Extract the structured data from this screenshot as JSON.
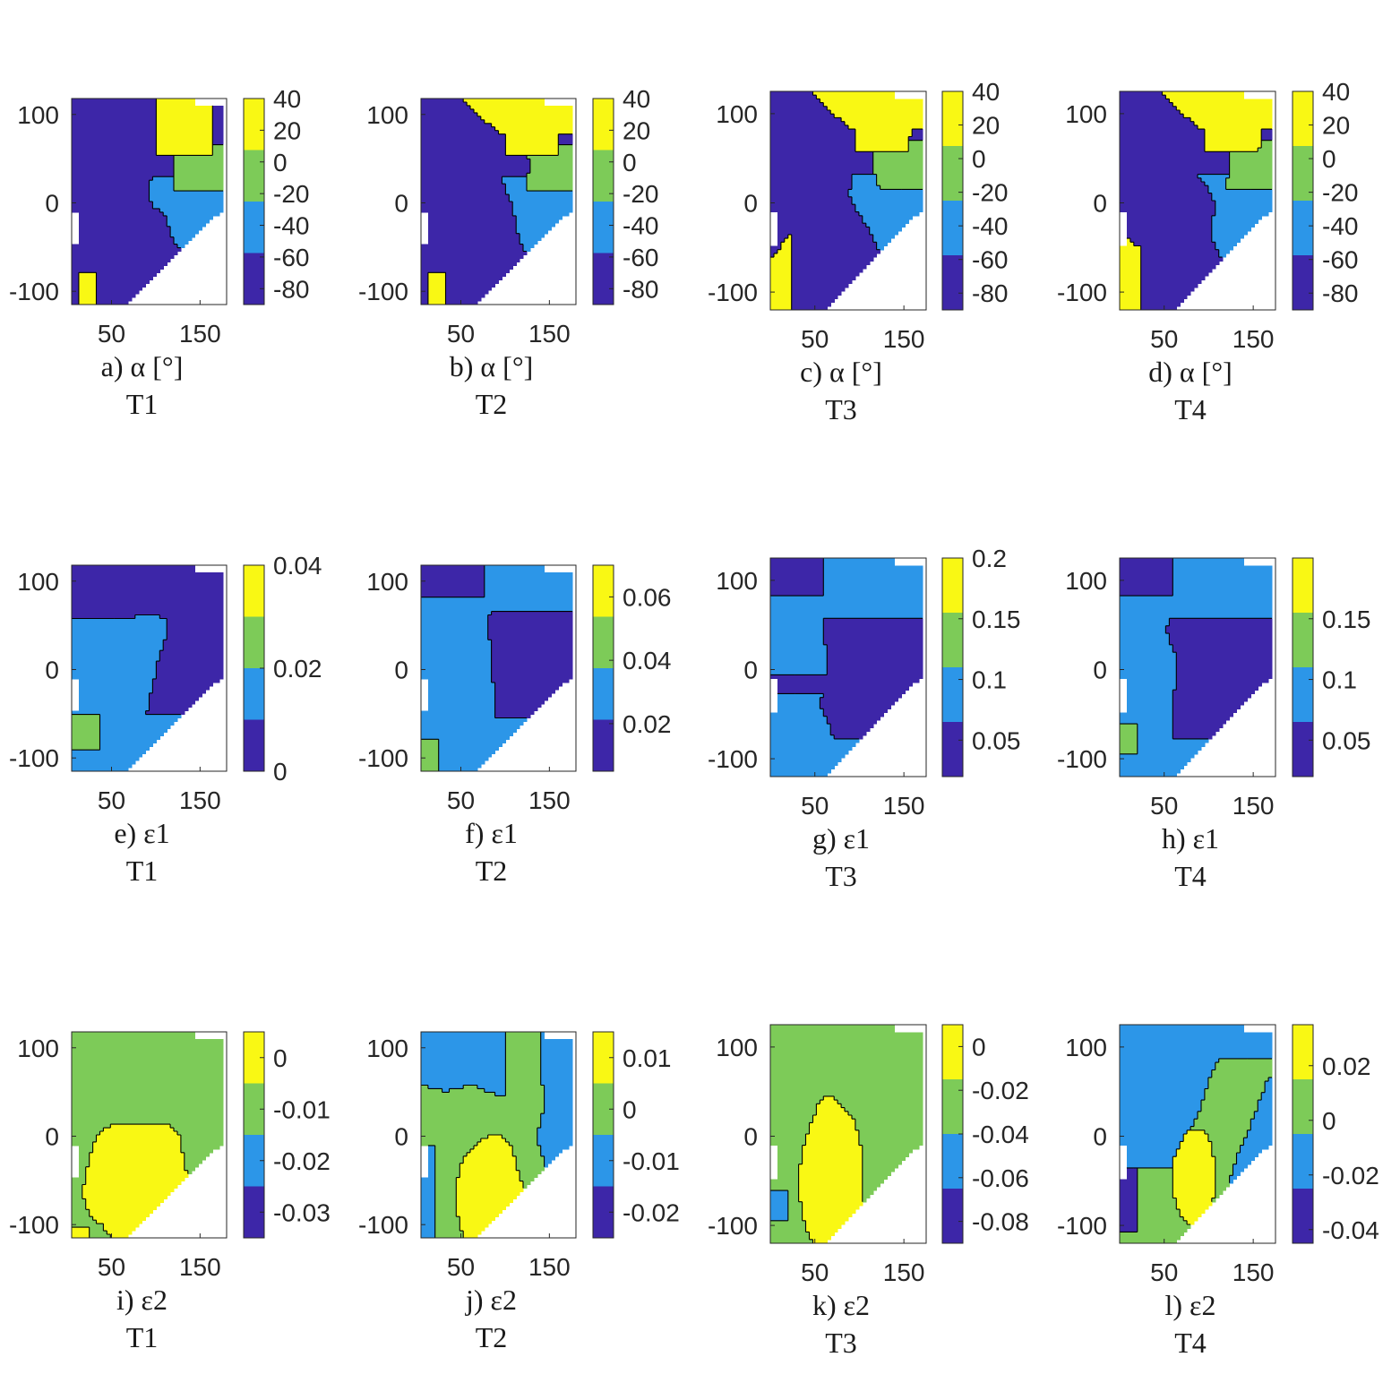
{
  "colors": {
    "level1": "#3d26a8",
    "level2": "#2c96e8",
    "level3": "#7dcb58",
    "level4": "#f9f814",
    "contour": "#000000",
    "axis": "#262626",
    "blank": "#ffffff"
  },
  "chart_data": [
    {
      "type": "heatmap",
      "row": 0,
      "col": 0,
      "title": "a) α [°]",
      "condition": "T1",
      "variable": "α",
      "unit": "°",
      "xticks": [
        "50",
        "150"
      ],
      "yticks": [
        "100",
        "0",
        "-100"
      ],
      "xlim": [
        5,
        180
      ],
      "ylim": [
        -115,
        118
      ],
      "colorbar": {
        "ticks": [
          "40",
          "20",
          "0",
          "-20",
          "-40",
          "-60",
          "-80"
        ],
        "levels": [
          -90,
          -60,
          -30,
          0,
          40
        ]
      }
    },
    {
      "type": "heatmap",
      "row": 0,
      "col": 1,
      "title": "b) α [°]",
      "condition": "T2",
      "variable": "α",
      "unit": "°",
      "xticks": [
        "50",
        "150"
      ],
      "yticks": [
        "100",
        "0",
        "-100"
      ],
      "xlim": [
        5,
        180
      ],
      "ylim": [
        -115,
        118
      ],
      "colorbar": {
        "ticks": [
          "40",
          "20",
          "0",
          "-20",
          "-40",
          "-60",
          "-80"
        ],
        "levels": [
          -90,
          -60,
          -30,
          0,
          40
        ]
      }
    },
    {
      "type": "heatmap",
      "row": 0,
      "col": 2,
      "title": "c) α [°]",
      "condition": "T3",
      "variable": "α",
      "unit": "°",
      "xticks": [
        "50",
        "150"
      ],
      "yticks": [
        "100",
        "0",
        "-100"
      ],
      "xlim": [
        0,
        175
      ],
      "ylim": [
        -120,
        125
      ],
      "colorbar": {
        "ticks": [
          "40",
          "20",
          "0",
          "-20",
          "-40",
          "-60",
          "-80"
        ],
        "levels": [
          -90,
          -60,
          -30,
          0,
          40
        ]
      }
    },
    {
      "type": "heatmap",
      "row": 0,
      "col": 3,
      "title": "d) α [°]",
      "condition": "T4",
      "variable": "α",
      "unit": "°",
      "xticks": [
        "50",
        "150"
      ],
      "yticks": [
        "100",
        "0",
        "-100"
      ],
      "xlim": [
        0,
        175
      ],
      "ylim": [
        -120,
        125
      ],
      "colorbar": {
        "ticks": [
          "40",
          "20",
          "0",
          "-20",
          "-40",
          "-60",
          "-80"
        ],
        "levels": [
          -90,
          -60,
          -30,
          0,
          40
        ]
      }
    },
    {
      "type": "heatmap",
      "row": 1,
      "col": 0,
      "title": "e) ε1",
      "condition": "T1",
      "variable": "ε1",
      "xticks": [
        "50",
        "150"
      ],
      "yticks": [
        "100",
        "0",
        "-100"
      ],
      "xlim": [
        5,
        180
      ],
      "ylim": [
        -115,
        118
      ],
      "colorbar": {
        "ticks": [
          "0.04",
          "0.02",
          "0"
        ],
        "levels": [
          0,
          0.01,
          0.02,
          0.03,
          0.04
        ]
      }
    },
    {
      "type": "heatmap",
      "row": 1,
      "col": 1,
      "title": "f) ε1",
      "condition": "T2",
      "variable": "ε1",
      "xticks": [
        "50",
        "150"
      ],
      "yticks": [
        "100",
        "0",
        "-100"
      ],
      "xlim": [
        5,
        180
      ],
      "ylim": [
        -115,
        118
      ],
      "colorbar": {
        "ticks": [
          "0.06",
          "0.04",
          "0.02"
        ],
        "levels": [
          0.005,
          0.02,
          0.04,
          0.055,
          0.07
        ]
      }
    },
    {
      "type": "heatmap",
      "row": 1,
      "col": 2,
      "title": "g) ε1",
      "condition": "T3",
      "variable": "ε1",
      "xticks": [
        "50",
        "150"
      ],
      "yticks": [
        "100",
        "0",
        "-100"
      ],
      "xlim": [
        0,
        175
      ],
      "ylim": [
        -120,
        125
      ],
      "colorbar": {
        "ticks": [
          "0.2",
          "0.15",
          "0.1",
          "0.05"
        ],
        "levels": [
          0.02,
          0.06,
          0.11,
          0.16,
          0.2
        ]
      }
    },
    {
      "type": "heatmap",
      "row": 1,
      "col": 3,
      "title": "h) ε1",
      "condition": "T4",
      "variable": "ε1",
      "xticks": [
        "50",
        "150"
      ],
      "yticks": [
        "100",
        "0",
        "-100"
      ],
      "xlim": [
        0,
        175
      ],
      "ylim": [
        -120,
        125
      ],
      "colorbar": {
        "ticks": [
          "0.15",
          "0.1",
          "0.05"
        ],
        "levels": [
          0.02,
          0.06,
          0.11,
          0.16,
          0.2
        ]
      }
    },
    {
      "type": "heatmap",
      "row": 2,
      "col": 0,
      "title": "i) ε2",
      "condition": "T1",
      "variable": "ε2",
      "xticks": [
        "50",
        "150"
      ],
      "yticks": [
        "100",
        "0",
        "-100"
      ],
      "xlim": [
        5,
        180
      ],
      "ylim": [
        -115,
        118
      ],
      "colorbar": {
        "ticks": [
          "0",
          "-0.01",
          "-0.02",
          "-0.03"
        ],
        "levels": [
          -0.035,
          -0.025,
          -0.015,
          -0.005,
          0.005
        ]
      }
    },
    {
      "type": "heatmap",
      "row": 2,
      "col": 1,
      "title": "j) ε2",
      "condition": "T2",
      "variable": "ε2",
      "xticks": [
        "50",
        "150"
      ],
      "yticks": [
        "100",
        "0",
        "-100"
      ],
      "xlim": [
        5,
        180
      ],
      "ylim": [
        -115,
        118
      ],
      "colorbar": {
        "ticks": [
          "0.01",
          "0",
          "-0.01",
          "-0.02"
        ],
        "levels": [
          -0.025,
          -0.015,
          -0.005,
          0.005,
          0.015
        ]
      }
    },
    {
      "type": "heatmap",
      "row": 2,
      "col": 2,
      "title": "k) ε2",
      "condition": "T3",
      "variable": "ε2",
      "xticks": [
        "50",
        "150"
      ],
      "yticks": [
        "100",
        "0",
        "-100"
      ],
      "xlim": [
        0,
        175
      ],
      "ylim": [
        -120,
        125
      ],
      "colorbar": {
        "ticks": [
          "0",
          "-0.02",
          "-0.04",
          "-0.06",
          "-0.08"
        ],
        "levels": [
          -0.09,
          -0.065,
          -0.04,
          -0.015,
          0.01
        ]
      }
    },
    {
      "type": "heatmap",
      "row": 2,
      "col": 3,
      "title": "l) ε2",
      "condition": "T4",
      "variable": "ε2",
      "xticks": [
        "50",
        "150"
      ],
      "yticks": [
        "100",
        "0",
        "-100"
      ],
      "xlim": [
        0,
        175
      ],
      "ylim": [
        -120,
        125
      ],
      "colorbar": {
        "ticks": [
          "0.02",
          "0",
          "-0.02",
          "-0.04"
        ],
        "levels": [
          -0.045,
          -0.025,
          -0.005,
          0.015,
          0.035
        ]
      }
    }
  ]
}
